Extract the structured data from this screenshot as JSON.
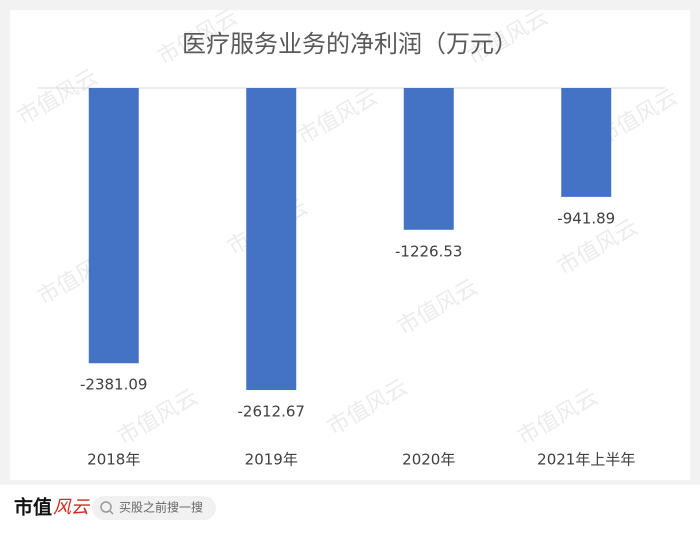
{
  "chart_data": {
    "type": "bar",
    "title": "医疗服务业务的净利润（万元）",
    "categories": [
      "2018年",
      "2019年",
      "2020年",
      "2021年上半年"
    ],
    "values": [
      -2381.09,
      -2612.67,
      -1226.53,
      -941.89
    ],
    "color": "#4472c4",
    "watermark": "市值风云"
  },
  "footer": {
    "logo_main": "市值",
    "logo_accent": "风云",
    "search_placeholder": "买股之前搜一搜"
  }
}
